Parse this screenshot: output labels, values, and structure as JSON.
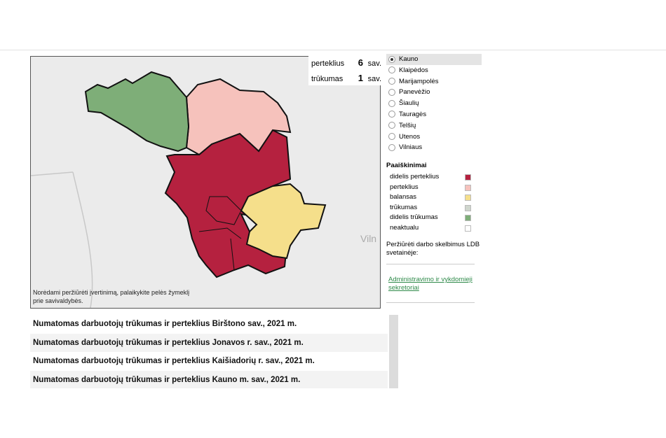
{
  "summary": [
    {
      "label": "perteklius",
      "count": 6,
      "unit": "sav."
    },
    {
      "label": "trūkumas",
      "count": 1,
      "unit": "sav."
    }
  ],
  "regions": {
    "selected": 0,
    "items": [
      "Kauno",
      "Klaipėdos",
      "Marijampolės",
      "Panevėžio",
      "Šiaulių",
      "Tauragės",
      "Telšių",
      "Utenos",
      "Vilniaus"
    ]
  },
  "legend": {
    "title": "Paaiškinimai",
    "items": [
      {
        "label": "didelis perteklius",
        "color": "#b5213f"
      },
      {
        "label": "perteklius",
        "color": "#f6c2bc"
      },
      {
        "label": "balansas",
        "color": "#f5df8b"
      },
      {
        "label": "trūkumas",
        "color": "#cfd6cd"
      },
      {
        "label": "didelis trūkumas",
        "color": "#7eae78"
      },
      {
        "label": "neaktualu",
        "color": "#ffffff"
      }
    ]
  },
  "links": {
    "intro": "Peržiūrėti darbo skelbimus LDB svetainėje:",
    "link": "Administravimo ir vykdomieji sekretoriai"
  },
  "map": {
    "note": "Norėdami peržiūrėti įvertinimą, palaikykite pelės žymeklį prie savivaldybės.",
    "city_label": "Viln"
  },
  "list": [
    "Numatomas darbuotojų trūkumas ir perteklius Birštono sav., 2021 m.",
    "Numatomas darbuotojų trūkumas ir perteklius Jonavos r. sav., 2021 m.",
    "Numatomas darbuotojų trūkumas ir perteklius Kaišiadorių r. sav., 2021 m.",
    "Numatomas darbuotojų trūkumas ir perteklius Kauno m. sav., 2021 m."
  ]
}
